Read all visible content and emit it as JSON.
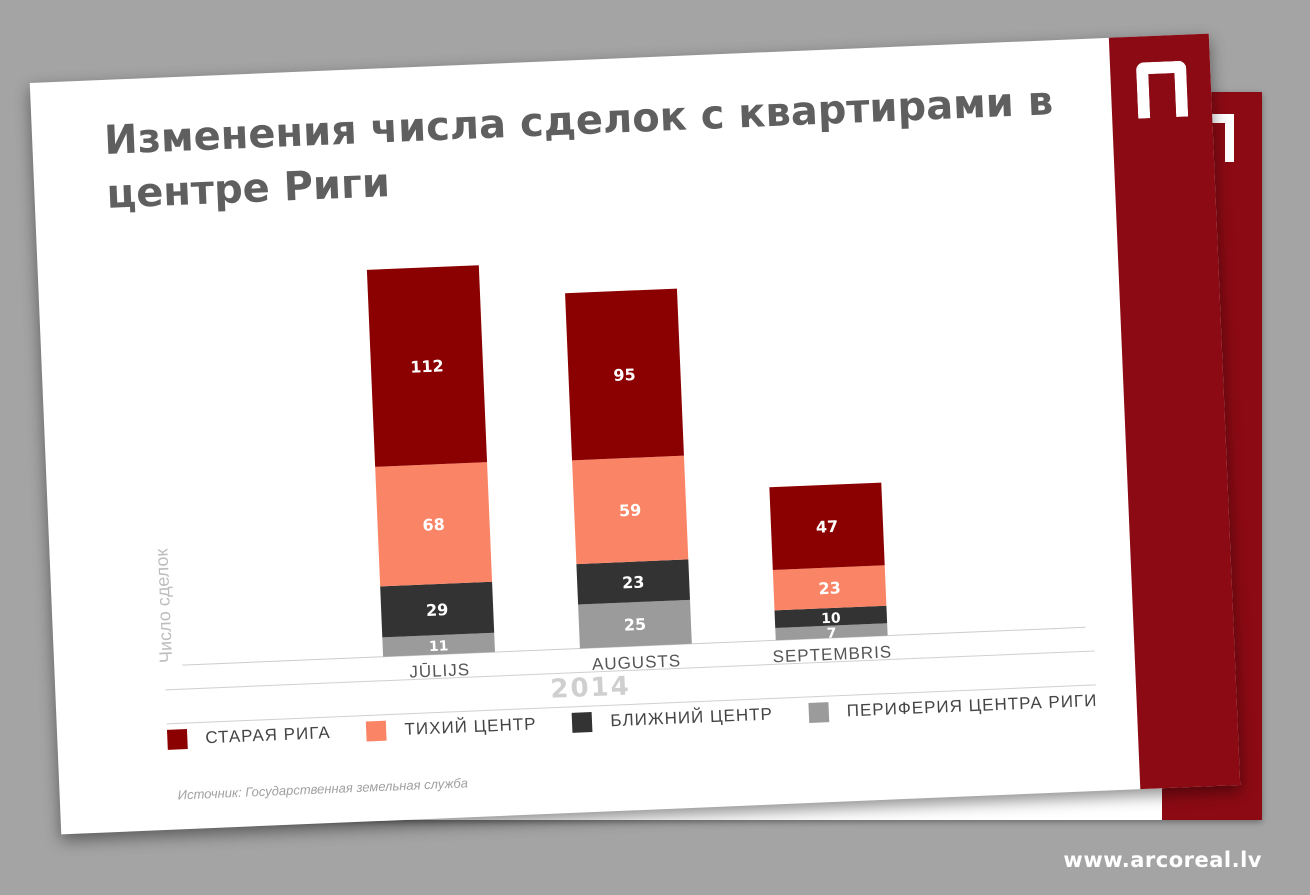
{
  "site": "www.arcoreal.lv",
  "source": "Источник: Государственная земельная служба",
  "colors": {
    "brand": "#8c0a14",
    "old_riga": "#8b0000",
    "quiet_center": "#fa8466",
    "near_center": "#333333",
    "periphery": "#9b9b9b"
  },
  "chart_data": {
    "type": "bar",
    "stacked": true,
    "title": "Изменения числа сделок с квартирами в центре Риги",
    "xlabel": "2014",
    "ylabel": "Число сделок",
    "categories": [
      "JŪLIJS",
      "AUGUSTS",
      "SEPTEMBRIS"
    ],
    "series": [
      {
        "name": "ПЕРИФЕРИЯ ЦЕНТРА РИГИ",
        "color": "#9b9b9b",
        "values": [
          11,
          25,
          7
        ]
      },
      {
        "name": "БЛИЖНИЙ ЦЕНТР",
        "color": "#333333",
        "values": [
          29,
          23,
          10
        ]
      },
      {
        "name": "ТИХИЙ ЦЕНТР",
        "color": "#fa8466",
        "values": [
          68,
          59,
          23
        ]
      },
      {
        "name": "СТАРАЯ РИГА",
        "color": "#8b0000",
        "values": [
          112,
          95,
          47
        ]
      }
    ],
    "legend_order": [
      "СТАРАЯ РИГА",
      "ТИХИЙ ЦЕНТР",
      "БЛИЖНИЙ ЦЕНТР",
      "ПЕРИФЕРИЯ ЦЕНТРА РИГИ"
    ],
    "legend_position": "bottom",
    "data_labels": true,
    "grid": false
  }
}
